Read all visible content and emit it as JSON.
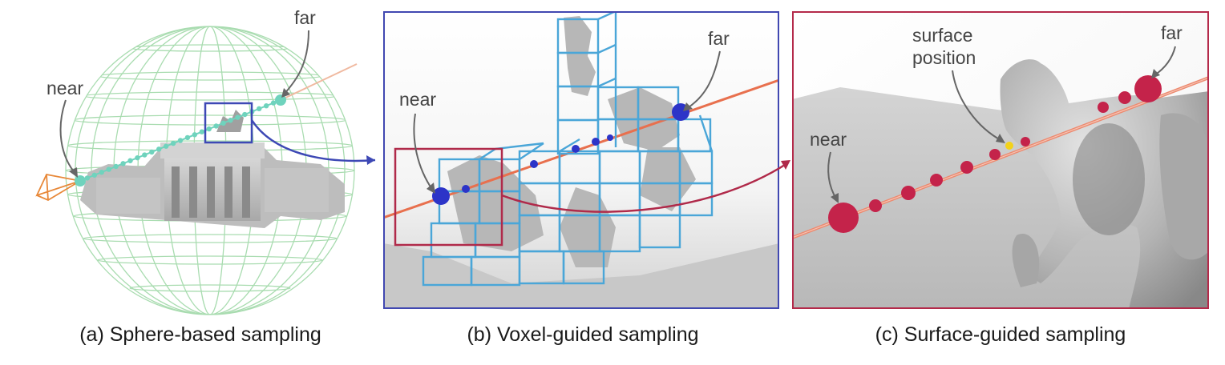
{
  "panels": [
    {
      "caption": "(a) Sphere-based sampling",
      "labels": {
        "near": "near",
        "far": "far"
      },
      "colors": {
        "sphere": "#a9dcb0",
        "samples": "#6fd3bd",
        "camera": "#e8893a",
        "ray": "#f0b9a0",
        "zoom_box": "#3d48b5"
      }
    },
    {
      "caption": "(b) Voxel-guided sampling",
      "labels": {
        "near": "near",
        "far": "far"
      },
      "colors": {
        "border": "#4148b1",
        "voxels": "#4aa6d8",
        "samples": "#2c34c8",
        "ray": "#e8704e",
        "zoom_box": "#b02a4a"
      }
    },
    {
      "caption": "(c) Surface-guided sampling",
      "labels": {
        "near": "near",
        "far": "far",
        "surface_line1": "surface",
        "surface_line2": "position"
      },
      "colors": {
        "border": "#b42a4a",
        "samples": "#c4234a",
        "ray": "#ec8a70",
        "surface_point": "#f3d21a"
      }
    }
  ]
}
